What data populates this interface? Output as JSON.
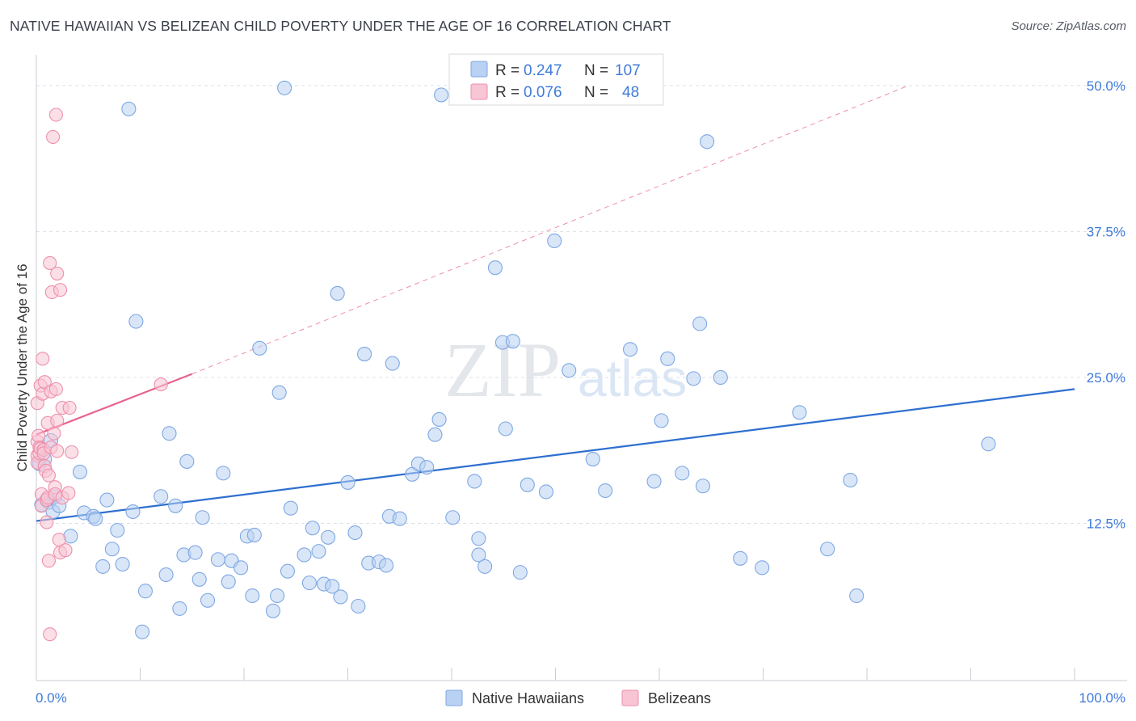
{
  "header": {
    "title": "NATIVE HAWAIIAN VS BELIZEAN CHILD POVERTY UNDER THE AGE OF 16 CORRELATION CHART",
    "source": "Source: ZipAtlas.com"
  },
  "watermark": {
    "zip": "ZIP",
    "atlas": "atlas"
  },
  "colors": {
    "blue_fill": "#b9d1f2",
    "blue_stroke": "#7ea8e3",
    "blue_line": "#2e6fd0",
    "pink_fill": "#f7c5d4",
    "pink_stroke": "#ee8fab",
    "pink_line": "#e8648e",
    "label_blue": "#3f7bd9",
    "grid": "#dde1e8"
  },
  "chart_data": {
    "type": "scatter",
    "title": "NATIVE HAWAIIAN VS BELIZEAN CHILD POVERTY UNDER THE AGE OF 16 CORRELATION CHART",
    "xlabel": "",
    "ylabel": "Child Poverty Under the Age of 16",
    "xlim": [
      0,
      100
    ],
    "ylim": [
      0,
      52
    ],
    "x_tick_labels": [
      "0.0%",
      "100.0%"
    ],
    "y_ticks": [
      12.5,
      25.0,
      37.5,
      50.0
    ],
    "y_tick_labels": [
      "12.5%",
      "25.0%",
      "37.5%",
      "50.0%"
    ],
    "grid": true,
    "legend": {
      "placement": "top-center",
      "entries": [
        {
          "r_label": "R =",
          "r_value": "0.247",
          "n_label": "N =",
          "n_value": "107"
        },
        {
          "r_label": "R =",
          "r_value": "0.076",
          "n_label": "N =",
          "n_value": "48"
        }
      ]
    },
    "series": [
      {
        "name": "Native Hawaiians",
        "color": "#b9d1f2",
        "trend": {
          "x": [
            0,
            100
          ],
          "y": [
            12.7,
            24.0
          ]
        },
        "points": [
          [
            0.3,
            17.6
          ],
          [
            0.5,
            14.1
          ],
          [
            0.8,
            18.0
          ],
          [
            1.0,
            14.5
          ],
          [
            1.2,
            14.3
          ],
          [
            1.4,
            19.6
          ],
          [
            1.6,
            13.5
          ],
          [
            1.8,
            14.8
          ],
          [
            2.2,
            14.0
          ],
          [
            3.3,
            11.4
          ],
          [
            4.2,
            16.9
          ],
          [
            4.6,
            13.4
          ],
          [
            5.5,
            13.1
          ],
          [
            5.7,
            12.9
          ],
          [
            6.4,
            8.8
          ],
          [
            6.8,
            14.5
          ],
          [
            7.3,
            10.3
          ],
          [
            7.8,
            11.9
          ],
          [
            8.3,
            9.0
          ],
          [
            9.3,
            13.5
          ],
          [
            8.9,
            48.0
          ],
          [
            9.6,
            29.8
          ],
          [
            10.2,
            3.2
          ],
          [
            10.5,
            6.7
          ],
          [
            12.0,
            14.8
          ],
          [
            12.5,
            8.1
          ],
          [
            12.8,
            20.2
          ],
          [
            13.4,
            14.0
          ],
          [
            13.8,
            5.2
          ],
          [
            14.2,
            9.8
          ],
          [
            14.5,
            17.8
          ],
          [
            15.3,
            10.0
          ],
          [
            15.7,
            7.7
          ],
          [
            16.0,
            13.0
          ],
          [
            16.5,
            5.9
          ],
          [
            17.5,
            9.4
          ],
          [
            18.0,
            16.8
          ],
          [
            18.5,
            7.5
          ],
          [
            18.8,
            9.3
          ],
          [
            19.7,
            8.7
          ],
          [
            20.3,
            11.4
          ],
          [
            20.8,
            6.3
          ],
          [
            21.0,
            11.5
          ],
          [
            21.5,
            27.5
          ],
          [
            22.8,
            5.0
          ],
          [
            23.2,
            6.3
          ],
          [
            23.4,
            23.7
          ],
          [
            23.9,
            49.8
          ],
          [
            24.2,
            8.4
          ],
          [
            24.5,
            13.8
          ],
          [
            25.8,
            9.8
          ],
          [
            26.3,
            7.4
          ],
          [
            26.6,
            12.1
          ],
          [
            27.2,
            10.1
          ],
          [
            27.7,
            7.3
          ],
          [
            28.1,
            11.3
          ],
          [
            28.5,
            7.1
          ],
          [
            29.0,
            32.2
          ],
          [
            29.3,
            6.2
          ],
          [
            30.0,
            16.0
          ],
          [
            30.7,
            11.7
          ],
          [
            31.0,
            5.4
          ],
          [
            31.6,
            27.0
          ],
          [
            32.0,
            9.1
          ],
          [
            33.0,
            9.2
          ],
          [
            33.7,
            8.9
          ],
          [
            34.0,
            13.1
          ],
          [
            34.3,
            26.2
          ],
          [
            35.0,
            12.9
          ],
          [
            36.2,
            16.7
          ],
          [
            36.8,
            17.6
          ],
          [
            37.6,
            17.3
          ],
          [
            38.4,
            20.1
          ],
          [
            38.8,
            21.4
          ],
          [
            39.0,
            49.2
          ],
          [
            40.1,
            13.0
          ],
          [
            42.2,
            16.1
          ],
          [
            42.6,
            11.2
          ],
          [
            42.6,
            9.8
          ],
          [
            43.2,
            8.8
          ],
          [
            44.2,
            34.4
          ],
          [
            44.9,
            28.0
          ],
          [
            45.2,
            20.6
          ],
          [
            45.9,
            28.1
          ],
          [
            46.6,
            8.3
          ],
          [
            47.3,
            15.8
          ],
          [
            49.1,
            15.2
          ],
          [
            49.9,
            36.7
          ],
          [
            51.3,
            25.6
          ],
          [
            53.6,
            18.0
          ],
          [
            54.8,
            15.3
          ],
          [
            57.2,
            27.4
          ],
          [
            59.5,
            16.1
          ],
          [
            60.2,
            21.3
          ],
          [
            60.8,
            26.6
          ],
          [
            62.2,
            16.8
          ],
          [
            63.3,
            24.9
          ],
          [
            63.9,
            29.6
          ],
          [
            64.2,
            15.7
          ],
          [
            64.6,
            45.2
          ],
          [
            65.9,
            25.0
          ],
          [
            67.8,
            9.5
          ],
          [
            69.9,
            8.7
          ],
          [
            73.5,
            22.0
          ],
          [
            76.2,
            10.3
          ],
          [
            78.4,
            16.2
          ],
          [
            79.0,
            6.3
          ],
          [
            91.7,
            19.3
          ]
        ]
      },
      {
        "name": "Belizeans",
        "color": "#f7c5d4",
        "trend": {
          "x": [
            0,
            15
          ],
          "y": [
            20.1,
            25.3
          ],
          "extended": {
            "x": [
              15,
              84
            ],
            "y": [
              25.3,
              50.0
            ]
          }
        },
        "points": [
          [
            0.1,
            18.3
          ],
          [
            0.1,
            19.5
          ],
          [
            0.1,
            22.8
          ],
          [
            0.1,
            17.7
          ],
          [
            0.2,
            20.0
          ],
          [
            0.3,
            18.5
          ],
          [
            0.3,
            19.0
          ],
          [
            0.4,
            18.9
          ],
          [
            0.4,
            24.3
          ],
          [
            0.5,
            15.0
          ],
          [
            0.5,
            14.0
          ],
          [
            0.6,
            26.6
          ],
          [
            0.6,
            23.6
          ],
          [
            0.7,
            18.8
          ],
          [
            0.7,
            18.5
          ],
          [
            0.8,
            24.6
          ],
          [
            0.8,
            17.4
          ],
          [
            0.9,
            17.0
          ],
          [
            1.0,
            12.6
          ],
          [
            1.0,
            14.5
          ],
          [
            1.1,
            14.7
          ],
          [
            1.1,
            21.1
          ],
          [
            1.2,
            16.6
          ],
          [
            1.2,
            9.3
          ],
          [
            1.3,
            3.0
          ],
          [
            1.3,
            34.8
          ],
          [
            1.4,
            23.8
          ],
          [
            1.4,
            19.0
          ],
          [
            1.5,
            32.3
          ],
          [
            1.6,
            45.6
          ],
          [
            1.7,
            20.2
          ],
          [
            1.8,
            15.6
          ],
          [
            1.8,
            15.0
          ],
          [
            1.9,
            24.0
          ],
          [
            1.9,
            47.5
          ],
          [
            2.0,
            21.3
          ],
          [
            2.0,
            33.9
          ],
          [
            2.0,
            18.7
          ],
          [
            2.2,
            11.1
          ],
          [
            2.3,
            32.5
          ],
          [
            2.3,
            10.0
          ],
          [
            2.5,
            22.4
          ],
          [
            2.5,
            14.7
          ],
          [
            2.8,
            10.2
          ],
          [
            3.1,
            15.1
          ],
          [
            3.2,
            22.4
          ],
          [
            3.4,
            18.6
          ],
          [
            12.0,
            24.4
          ]
        ]
      }
    ]
  },
  "bottom_legend": {
    "blue_label": "Native Hawaiians",
    "pink_label": "Belizeans"
  }
}
